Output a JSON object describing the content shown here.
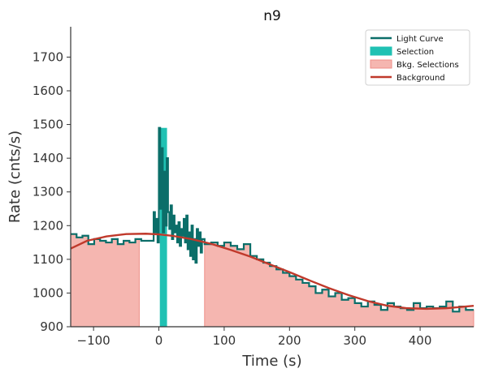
{
  "chart_data": {
    "type": "line",
    "title": "n9",
    "xlabel": "Time (s)",
    "ylabel": "Rate (cnts/s)",
    "xlim": [
      -135,
      482
    ],
    "ylim": [
      900,
      1790
    ],
    "xticks": [
      -100,
      0,
      100,
      200,
      300,
      400
    ],
    "xtick_labels": [
      "−100",
      "0",
      "100",
      "200",
      "300",
      "400"
    ],
    "yticks": [
      900,
      1000,
      1100,
      1200,
      1300,
      1400,
      1500,
      1600,
      1700
    ],
    "ytick_labels": [
      "900",
      "1000",
      "1100",
      "1200",
      "1300",
      "1400",
      "1500",
      "1600",
      "1700"
    ],
    "grid": false,
    "legend_position": "top-right",
    "legend": [
      {
        "label": "Light Curve",
        "kind": "line",
        "color": "#0b6e69"
      },
      {
        "label": "Selection",
        "kind": "patch",
        "color": "#20c1b3"
      },
      {
        "label": "Bkg. Selections",
        "kind": "patch",
        "color": "#f5b6b0"
      },
      {
        "label": "Background",
        "kind": "line",
        "color": "#c0392b"
      }
    ],
    "colors": {
      "light_curve": "#0b6e69",
      "selection": "#20c1b3",
      "bkg_fill": "#f5b6b0",
      "bkg_edge": "#ee8f88",
      "background": "#c0392b",
      "axis": "#333333"
    },
    "selection_interval": [
      1.5,
      12.5
    ],
    "bkg_intervals": [
      [
        -135,
        -30
      ],
      [
        70,
        482
      ]
    ],
    "light_curve": {
      "x": [
        -135,
        -126,
        -117,
        -108,
        -99,
        -90,
        -81,
        -72,
        -63,
        -54,
        -45,
        -36,
        -27,
        -8,
        -6,
        -4,
        -2,
        0,
        2,
        4,
        6,
        8,
        10,
        12,
        14,
        16,
        18,
        20,
        22,
        24,
        26,
        28,
        30,
        32,
        34,
        36,
        38,
        40,
        42,
        44,
        46,
        48,
        50,
        52,
        54,
        56,
        58,
        60,
        62,
        64,
        66,
        70,
        80,
        90,
        100,
        110,
        120,
        130,
        140,
        150,
        160,
        170,
        180,
        190,
        200,
        210,
        220,
        230,
        240,
        250,
        260,
        270,
        280,
        290,
        300,
        310,
        320,
        330,
        340,
        350,
        360,
        370,
        380,
        390,
        400,
        410,
        420,
        430,
        440,
        450,
        460,
        470,
        482
      ],
      "y": [
        1175,
        1165,
        1170,
        1145,
        1160,
        1155,
        1150,
        1160,
        1145,
        1155,
        1150,
        1160,
        1155,
        1240,
        1180,
        1220,
        1150,
        1490,
        1250,
        1430,
        1180,
        1360,
        1200,
        1400,
        1240,
        1190,
        1260,
        1160,
        1230,
        1180,
        1200,
        1150,
        1210,
        1140,
        1190,
        1170,
        1220,
        1150,
        1230,
        1130,
        1180,
        1110,
        1200,
        1100,
        1160,
        1090,
        1190,
        1140,
        1180,
        1120,
        1160,
        1145,
        1150,
        1140,
        1150,
        1140,
        1130,
        1145,
        1110,
        1100,
        1090,
        1080,
        1070,
        1060,
        1050,
        1040,
        1030,
        1020,
        1000,
        1010,
        990,
        1000,
        980,
        985,
        970,
        960,
        975,
        965,
        950,
        970,
        960,
        955,
        950,
        970,
        955,
        960,
        955,
        960,
        975,
        945,
        960,
        950,
        950
      ]
    },
    "background_model": {
      "x": [
        -135,
        -110,
        -80,
        -50,
        -20,
        0,
        20,
        50,
        80,
        110,
        140,
        170,
        200,
        230,
        260,
        290,
        320,
        350,
        380,
        410,
        440,
        470,
        482
      ],
      "y": [
        1132,
        1155,
        1168,
        1175,
        1176,
        1174,
        1170,
        1160,
        1146,
        1128,
        1108,
        1085,
        1062,
        1038,
        1015,
        994,
        976,
        962,
        955,
        953,
        955,
        960,
        962
      ]
    }
  }
}
